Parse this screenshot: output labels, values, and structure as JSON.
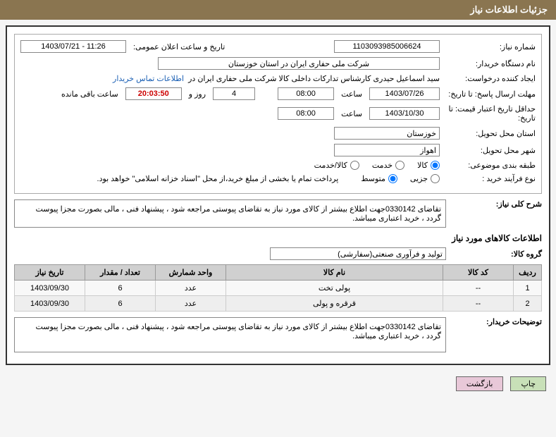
{
  "header": {
    "title": "جزئیات اطلاعات نیاز"
  },
  "fields": {
    "need_no_label": "شماره نیاز:",
    "need_no": "1103093985006624",
    "announce_label": "تاریخ و ساعت اعلان عمومی:",
    "announce_dt": "1403/07/21 - 11:26",
    "buyer_label": "نام دستگاه خریدار:",
    "buyer": "شرکت ملی حفاری ایران در استان خوزستان",
    "requester_label": "ایجاد کننده درخواست:",
    "requester": "سید اسماعیل حیدری کارشناس تدارکات داخلی کالا شرکت ملی حفاری ایران در",
    "contact_link": "اطلاعات تماس خریدار",
    "reply_deadline_label": "مهلت ارسال پاسخ: تا تاریخ:",
    "reply_date": "1403/07/26",
    "hour_label": "ساعت",
    "reply_hour": "08:00",
    "days_remaining": "4",
    "days_and": "روز و",
    "time_remaining": "20:03:50",
    "remaining_suffix": "ساعت باقی مانده",
    "valid_until_label": "حداقل تاریخ اعتبار قیمت: تا تاریخ:",
    "valid_date": "1403/10/30",
    "valid_hour": "08:00",
    "province_label": "استان محل تحویل:",
    "province": "خوزستان",
    "city_label": "شهر محل تحویل:",
    "city": "اهواز",
    "category_label": "طبقه بندی موضوعی:",
    "cat_goods": "کالا",
    "cat_service": "خدمت",
    "cat_both": "کالا/خدمت",
    "process_label": "نوع فرآیند خرید :",
    "proc_small": "جزیی",
    "proc_medium": "متوسط",
    "payment_note": "پرداخت تمام یا بخشی از مبلغ خرید،از محل \"اسناد خزانه اسلامی\" خواهد بود.",
    "desc_label": "شرح کلی نیاز:",
    "desc_text": "تقاضای 0330142جهت اطلاع بیشتر از کالای مورد نیاز به تقاضای پیوستی مراجعه شود ، پیشنهاد فنی ، مالی بصورت مجزا پیوست گردد ، خرید اعتباری میباشد.",
    "items_title": "اطلاعات کالاهای مورد نیاز",
    "group_label": "گروه کالا:",
    "group": "تولید و فرآوری صنعتی(سفارشی)",
    "buyer_notes_label": "توضیحات خریدار:",
    "buyer_notes": "تقاضای 0330142جهت اطلاع بیشتر از کالای مورد نیاز به تقاضای پیوستی مراجعه شود ، پیشنهاد فنی ، مالی بصورت مجزا پیوست گردد ، خرید اعتباری میباشد."
  },
  "table": {
    "headers": {
      "row": "ردیف",
      "code": "کد کالا",
      "name": "نام کالا",
      "unit": "واحد شمارش",
      "qty": "تعداد / مقدار",
      "date": "تاریخ نیاز"
    },
    "rows": [
      {
        "row": "1",
        "code": "--",
        "name": "پولی تخت",
        "unit": "عدد",
        "qty": "6",
        "date": "1403/09/30"
      },
      {
        "row": "2",
        "code": "--",
        "name": "قرقره و پولی",
        "unit": "عدد",
        "qty": "6",
        "date": "1403/09/30"
      }
    ]
  },
  "buttons": {
    "print": "چاپ",
    "back": "بازگشت"
  }
}
